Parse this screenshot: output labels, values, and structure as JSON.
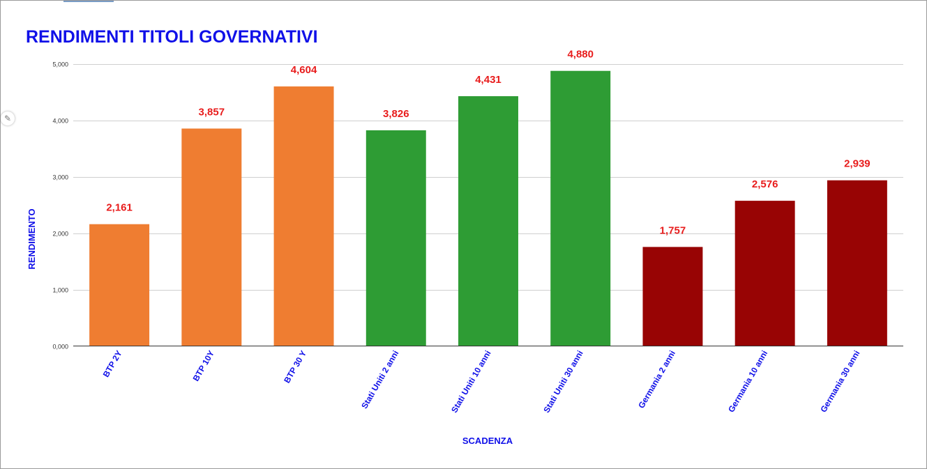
{
  "icons": {
    "edit": "pencil-icon"
  },
  "chart_data": {
    "type": "bar",
    "title": "RENDIMENTI TITOLI GOVERNATIVI",
    "xlabel": "SCADENZA",
    "ylabel": "RENDIMENTO",
    "ylim": [
      0,
      5
    ],
    "yticks": [
      "0,000",
      "1,000",
      "2,000",
      "3,000",
      "4,000",
      "5,000"
    ],
    "grid": true,
    "legend": "none",
    "categories": [
      "BTP 2Y",
      "BTP 10Y",
      "BTP 30 Y",
      "Stati Uniti 2 anni",
      "Stati Uniti 10 anni",
      "Stati Uniti 30 anni",
      "Germania 2 anni",
      "Germania 10 anni",
      "Germania 30 anni"
    ],
    "values": [
      2.161,
      3.857,
      4.604,
      3.826,
      4.431,
      4.88,
      1.757,
      2.576,
      2.939
    ],
    "data_labels": [
      "2,161",
      "3,857",
      "4,604",
      "3,826",
      "4,431",
      "4,880",
      "1,757",
      "2,576",
      "2,939"
    ],
    "bar_colors": [
      "#ef7d31",
      "#ef7d31",
      "#ef7d31",
      "#2e9c34",
      "#2e9c34",
      "#2e9c34",
      "#980404",
      "#980404",
      "#980404"
    ],
    "colors": {
      "title": "#1010e8",
      "data_label": "#e81c1c",
      "grid": "#cfcfcf"
    }
  }
}
